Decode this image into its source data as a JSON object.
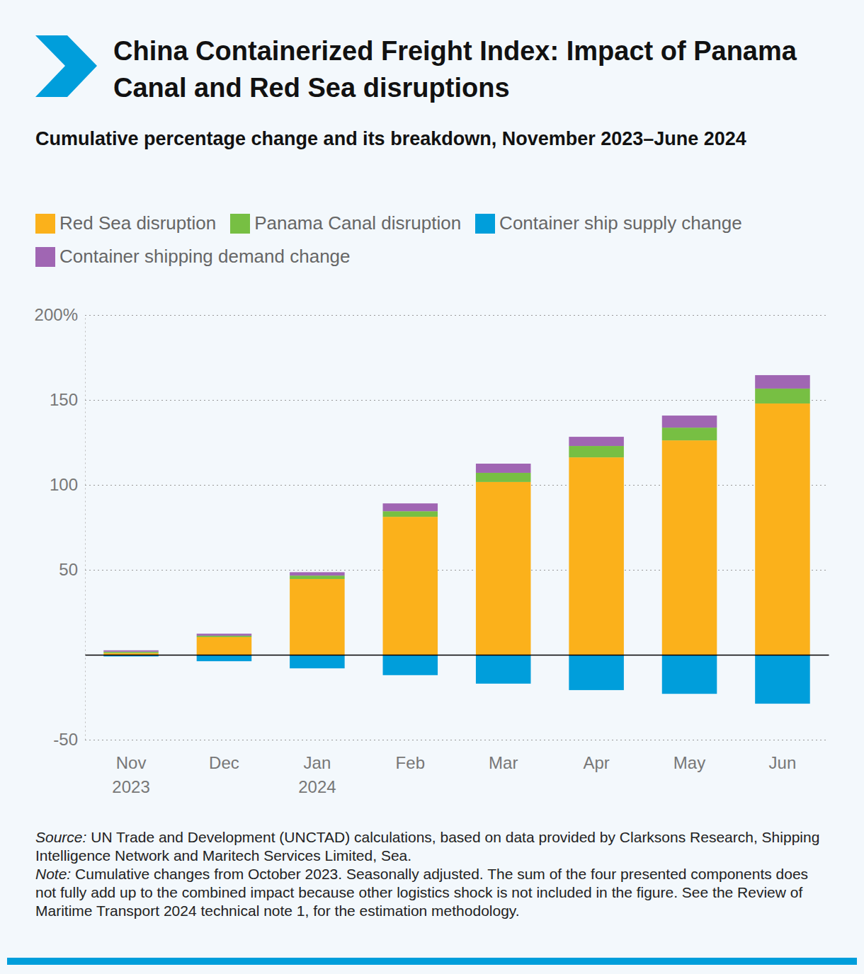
{
  "chart_data": {
    "type": "bar",
    "title": "China Containerized Freight Index: Impact of Panama Canal and Red Sea disruptions",
    "subtitle": "Cumulative percentage change and its breakdown, November 2023–June 2024",
    "categories": [
      "Nov 2023",
      "Dec",
      "Jan 2024",
      "Feb",
      "Mar",
      "Apr",
      "May",
      "Jun"
    ],
    "series": [
      {
        "name": "Red Sea disruption",
        "color": "#fbb11b",
        "values": [
          1,
          10.4,
          44.6,
          81.2,
          101.7,
          116.2,
          126.2,
          147.9
        ]
      },
      {
        "name": "Panama Canal disruption",
        "color": "#77bf43",
        "values": [
          0.8,
          0.8,
          2,
          3.3,
          5.4,
          6.7,
          7.5,
          8.8
        ]
      },
      {
        "name": "Container ship supply change",
        "color": "#009edb",
        "values": [
          -1,
          -3.8,
          -8,
          -12,
          -17,
          -20.8,
          -23,
          -28.8
        ]
      },
      {
        "name": "Container shipping demand change",
        "color": "#a066b3",
        "values": [
          0.8,
          1.2,
          2,
          4.6,
          5.4,
          5.4,
          7.1,
          7.9
        ]
      }
    ],
    "ylim": [
      -50,
      200
    ],
    "yticks": [
      -50,
      50,
      100,
      150,
      {
        "value": 200,
        "label": "200%"
      }
    ],
    "stacked": true,
    "grid": true,
    "legend": "top",
    "source": {
      "label": "Source:",
      "text": "UN Trade and Development (UNCTAD) calculations, based on data provided by Clarksons Research, Shipping Intelligence Network and Maritech Services Limited, Sea."
    },
    "note": {
      "label": "Note:",
      "text": "Cumulative changes from October 2023. Seasonally adjusted. The sum of the four presented components does not fully add up to the combined impact because other logistics shock is not included in the figure. See the Review of Maritime Transport 2024 technical note 1, for the estimation methodology."
    }
  }
}
